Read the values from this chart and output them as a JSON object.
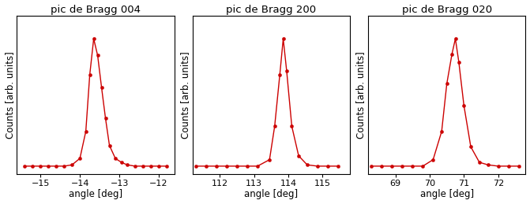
{
  "subplots": [
    {
      "title": "pic de Bragg 004",
      "xlabel": "angle [deg]",
      "ylabel": "Counts [arb. units]",
      "xlim": [
        -15.6,
        -11.6
      ],
      "xticks": [
        -15,
        -14,
        -13,
        -12
      ],
      "x_data": [
        -15.4,
        -15.2,
        -15.0,
        -14.8,
        -14.6,
        -14.4,
        -14.2,
        -14.0,
        -13.85,
        -13.75,
        -13.65,
        -13.55,
        -13.45,
        -13.35,
        -13.25,
        -13.1,
        -12.95,
        -12.8,
        -12.6,
        -12.4,
        -12.2,
        -12.0,
        -11.8
      ],
      "y_data": [
        0.01,
        0.01,
        0.01,
        0.01,
        0.01,
        0.01,
        0.02,
        0.07,
        0.28,
        0.72,
        1.0,
        0.87,
        0.62,
        0.38,
        0.17,
        0.07,
        0.04,
        0.02,
        0.01,
        0.01,
        0.01,
        0.01,
        0.01
      ]
    },
    {
      "title": "pic de Bragg 200",
      "xlabel": "angle [deg]",
      "ylabel": "Counts [arb. units]",
      "xlim": [
        111.2,
        115.8
      ],
      "xticks": [
        112,
        113,
        114,
        115
      ],
      "x_data": [
        111.3,
        111.6,
        111.9,
        112.2,
        112.5,
        112.8,
        113.1,
        113.45,
        113.6,
        113.75,
        113.85,
        113.95,
        114.1,
        114.3,
        114.55,
        114.85,
        115.15,
        115.45
      ],
      "y_data": [
        0.01,
        0.01,
        0.01,
        0.01,
        0.01,
        0.01,
        0.01,
        0.06,
        0.32,
        0.72,
        1.0,
        0.75,
        0.32,
        0.09,
        0.02,
        0.01,
        0.01,
        0.01
      ]
    },
    {
      "title": "pic de Bragg 020",
      "xlabel": "angle [deg]",
      "ylabel": "Counts [arb. units]",
      "xlim": [
        68.2,
        72.8
      ],
      "xticks": [
        69,
        70,
        71,
        72
      ],
      "x_data": [
        68.3,
        68.6,
        68.9,
        69.2,
        69.5,
        69.8,
        70.1,
        70.35,
        70.5,
        70.65,
        70.75,
        70.85,
        71.0,
        71.2,
        71.45,
        71.7,
        72.0,
        72.3,
        72.6
      ],
      "y_data": [
        0.01,
        0.01,
        0.01,
        0.01,
        0.01,
        0.01,
        0.06,
        0.28,
        0.65,
        0.88,
        1.0,
        0.82,
        0.48,
        0.16,
        0.04,
        0.02,
        0.01,
        0.01,
        0.01
      ]
    }
  ],
  "line_color": "#cc0000",
  "marker": "o",
  "markersize": 3.0,
  "linewidth": 1.0,
  "bg_color": "#ffffff",
  "title_fontsize": 9.5,
  "label_fontsize": 8.5,
  "tick_fontsize": 8.0
}
